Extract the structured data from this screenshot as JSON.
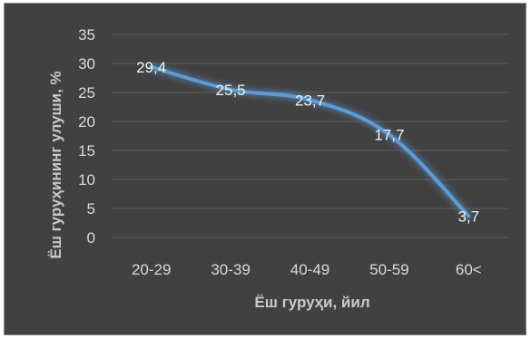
{
  "chart_data": {
    "type": "line",
    "categories": [
      "20-29",
      "30-39",
      "40-49",
      "50-59",
      "60<"
    ],
    "values": [
      29.4,
      25.5,
      23.7,
      17.7,
      3.7
    ],
    "data_labels": [
      "29,4",
      "25,5",
      "23,7",
      "17,7",
      "3,7"
    ],
    "title": "",
    "xlabel": "Ёш гуруҳи, йил",
    "ylabel": "Ёш гуруҳининг улуши, %",
    "ylim": [
      0,
      35
    ],
    "yticks": [
      "0",
      "5",
      "10",
      "15",
      "20",
      "25",
      "30",
      "35"
    ],
    "ytick_values": [
      0,
      5,
      10,
      15,
      20,
      25,
      30,
      35
    ],
    "grid": true,
    "legend": "none",
    "colors": {
      "background": "#414141",
      "grid": "#5e5e5e",
      "line": "#5b9bd5",
      "glow": "#5b9bd5",
      "text": "#d9d9d9"
    }
  }
}
